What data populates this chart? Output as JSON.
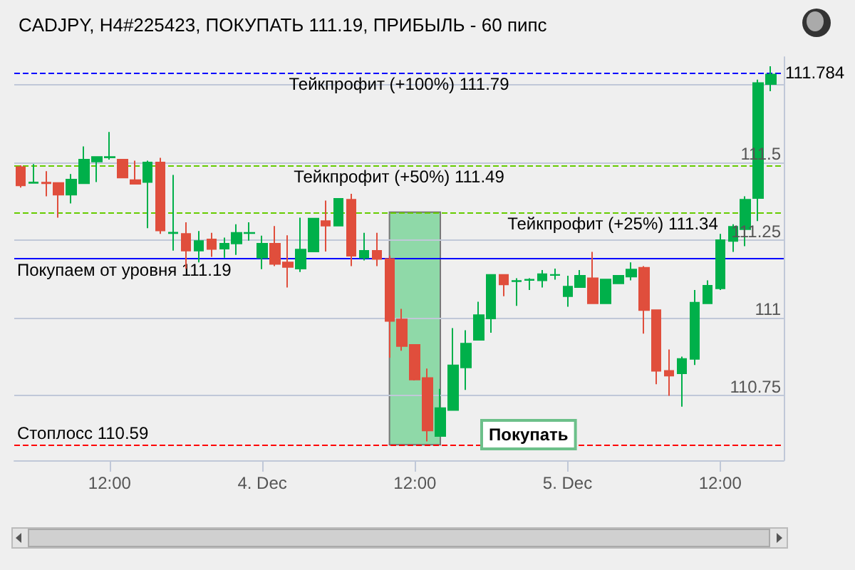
{
  "chart_data": {
    "type": "candlestick",
    "title": "CADJPY, H4#225423, ПОКУПАТЬ 111.19, ПРИБЫЛЬ - 60 пипс",
    "x": [
      "--12-03T05:00",
      "--12-03T06:00",
      "--12-03T07:00",
      "--12-03T08:00",
      "--12-03T09:00",
      "--12-03T10:00",
      "--12-03T11:00",
      "--12-03T12:00",
      "--12-03T13:00",
      "--12-03T14:00",
      "--12-03T15:00",
      "--12-03T16:00",
      "--12-03T17:00",
      "--12-03T18:00",
      "--12-03T19:00",
      "--12-03T20:00",
      "--12-03T21:00",
      "--12-03T22:00",
      "--12-03T23:00",
      "--12-04T00:00",
      "--12-04T01:00",
      "--12-04T02:00",
      "--12-04T03:00",
      "--12-04T04:00",
      "--12-04T05:00",
      "--12-04T06:00",
      "--12-04T07:00",
      "--12-04T08:00",
      "--12-04T09:00",
      "--12-04T10:00",
      "--12-04T11:00",
      "--12-04T12:00",
      "--12-04T13:00",
      "--12-04T14:00",
      "--12-04T15:00",
      "--12-04T16:00",
      "--12-04T17:00",
      "--12-04T18:00",
      "--12-04T19:00",
      "--12-04T20:00",
      "--12-04T21:00",
      "--12-04T22:00",
      "--12-04T23:00",
      "--12-05T00:00",
      "--12-05T01:00",
      "--12-05T02:00",
      "--12-05T03:00",
      "--12-05T04:00",
      "--12-05T05:00",
      "--12-05T06:00",
      "--12-05T07:00",
      "--12-05T08:00",
      "--12-05T09:00",
      "--12-05T10:00",
      "--12-05T11:00",
      "--12-05T12:00",
      "--12-05T13:00",
      "--12-05T14:00",
      "--12-05T15:00",
      "--12-05T16:00"
    ],
    "ohlc": [
      [
        111.485,
        111.491,
        111.419,
        111.426
      ],
      [
        111.434,
        111.495,
        111.433,
        111.436
      ],
      [
        111.435,
        111.472,
        111.391,
        111.433
      ],
      [
        111.434,
        111.434,
        111.322,
        111.396
      ],
      [
        111.396,
        111.463,
        111.368,
        111.445
      ],
      [
        111.433,
        111.552,
        111.431,
        111.509
      ],
      [
        111.503,
        111.519,
        111.437,
        111.518
      ],
      [
        111.516,
        111.598,
        111.509,
        111.518
      ],
      [
        111.509,
        111.51,
        111.45,
        111.451
      ],
      [
        111.443,
        111.506,
        111.43,
        111.431
      ],
      [
        111.437,
        111.506,
        111.288,
        111.5
      ],
      [
        111.5,
        111.515,
        111.27,
        111.281
      ],
      [
        111.272,
        111.46,
        111.216,
        111.274
      ],
      [
        111.27,
        111.307,
        111.158,
        111.216
      ],
      [
        111.216,
        111.279,
        111.178,
        111.247
      ],
      [
        111.252,
        111.273,
        111.196,
        111.221
      ],
      [
        111.222,
        111.258,
        111.193,
        111.238
      ],
      [
        111.239,
        111.301,
        111.202,
        111.273
      ],
      [
        111.272,
        111.307,
        111.248,
        111.273
      ],
      [
        111.193,
        111.264,
        111.156,
        111.238
      ],
      [
        111.238,
        111.295,
        111.166,
        111.173
      ],
      [
        111.178,
        111.265,
        111.097,
        111.163
      ],
      [
        111.158,
        111.322,
        111.147,
        111.219
      ],
      [
        111.213,
        111.319,
        111.213,
        111.319
      ],
      [
        111.311,
        111.377,
        111.213,
        111.296
      ],
      [
        111.296,
        111.385,
        111.296,
        111.383
      ],
      [
        111.38,
        111.399,
        111.166,
        111.199
      ],
      [
        111.193,
        111.273,
        111.184,
        111.215
      ],
      [
        111.215,
        111.273,
        111.166,
        111.189
      ],
      [
        111.189,
        111.2,
        110.871,
        110.989
      ],
      [
        110.994,
        111.028,
        110.893,
        110.908
      ],
      [
        110.912,
        110.912,
        110.797,
        110.8
      ],
      [
        110.805,
        110.836,
        110.601,
        110.636
      ],
      [
        110.618,
        110.77,
        110.618,
        110.708
      ],
      [
        110.702,
        110.966,
        110.702,
        110.846
      ],
      [
        110.839,
        110.959,
        110.767,
        110.916
      ],
      [
        110.928,
        111.051,
        110.928,
        111.008
      ],
      [
        110.997,
        111.138,
        110.951,
        111.138
      ],
      [
        111.138,
        111.138,
        111.069,
        111.107
      ],
      [
        111.117,
        111.127,
        111.038,
        111.118
      ],
      [
        111.121,
        111.127,
        111.089,
        111.122
      ],
      [
        111.12,
        111.153,
        111.097,
        111.14
      ],
      [
        111.137,
        111.158,
        111.122,
        111.138
      ],
      [
        111.069,
        111.135,
        111.035,
        111.1
      ],
      [
        111.098,
        111.153,
        111.097,
        111.135
      ],
      [
        111.127,
        111.212,
        111.046,
        111.046
      ],
      [
        111.046,
        111.123,
        111.046,
        111.123
      ],
      [
        111.11,
        111.135,
        111.11,
        111.135
      ],
      [
        111.132,
        111.178,
        111.12,
        111.155
      ],
      [
        111.161,
        111.166,
        110.948,
        111.024
      ],
      [
        111.024,
        111.024,
        110.785,
        110.828
      ],
      [
        110.828,
        110.897,
        110.748,
        110.813
      ],
      [
        110.82,
        110.874,
        110.713,
        110.867
      ],
      [
        110.867,
        111.089,
        110.847,
        111.048
      ],
      [
        111.046,
        111.12,
        111.046,
        111.103
      ],
      [
        111.094,
        111.27,
        111.089,
        111.25
      ],
      [
        111.247,
        111.301,
        111.212,
        111.293
      ],
      [
        111.285,
        111.391,
        111.23,
        111.38
      ],
      [
        111.385,
        111.767,
        111.311,
        111.756
      ],
      [
        111.753,
        111.81,
        111.73,
        111.784
      ]
    ],
    "xlim": [
      "--12-03T04:30",
      "--12-05T17:00"
    ],
    "xticks": [
      {
        "value": "--12-03T12:00",
        "label": "12:00"
      },
      {
        "value": "--12-04T00:00",
        "label": "4. Dec"
      },
      {
        "value": "--12-04T12:00",
        "label": "12:00"
      },
      {
        "value": "--12-05T00:00",
        "label": "5. Dec"
      },
      {
        "value": "--12-05T12:00",
        "label": "12:00"
      }
    ],
    "ylim": [
      110.54,
      111.84
    ],
    "yticks": [
      110.75,
      111,
      111.25,
      111.5,
      {
        "value": 111.75,
        "label": null
      }
    ],
    "grid": "y",
    "ref_lines": [
      {
        "axis": "y",
        "value": 111.79,
        "label": "Тейкпрофит (+100%) 111.79",
        "color": "#0000ff",
        "line_style": "dashed"
      },
      {
        "axis": "y",
        "value": 111.49,
        "label": "Тейкпрофит (+50%) 111.49",
        "color": "#66cc00",
        "line_style": "dashed"
      },
      {
        "axis": "y",
        "value": 111.34,
        "label": "Тейкпрофит (+25%) 111.34",
        "color": "#66cc00",
        "line_style": "dashed"
      },
      {
        "axis": "y",
        "value": 111.19,
        "label": "Покупаем от уровня 111.19",
        "color": "#0000ff",
        "line_style": "solid"
      },
      {
        "axis": "y",
        "value": 110.59,
        "label": "Стоплосс 110.59",
        "color": "#ff0000",
        "line_style": "dashed"
      }
    ],
    "bands": [
      {
        "axis": "x",
        "from": "--12-04T10:00",
        "to": "--12-04T14:00",
        "color": "#8fd9a8"
      }
    ],
    "annotations": [
      "Покупать",
      "111.784"
    ]
  }
}
